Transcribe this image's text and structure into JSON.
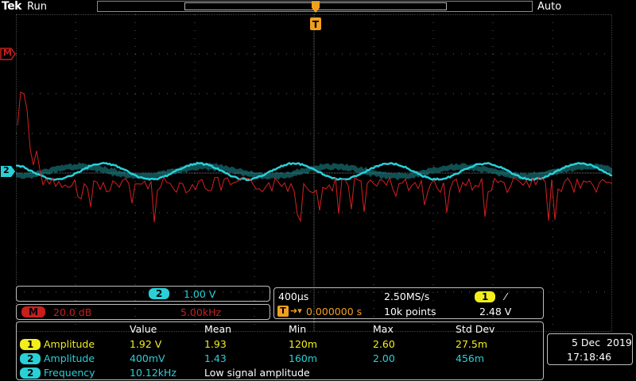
{
  "header": {
    "logo": "Tek",
    "status": "Run",
    "trigger_mode": "Auto",
    "trigger_marker": "T"
  },
  "markers": {
    "math": "M",
    "ch2": "2"
  },
  "ch2_scale": {
    "badge": "2",
    "value": "1.00 V"
  },
  "math_scale": {
    "badge": "M",
    "value": "20.0 dB",
    "freq": "5.00kHz"
  },
  "timebase": {
    "time_div": "400µs",
    "sample_rate": "2.50MS/s",
    "trigger_badge": "1",
    "trigger_slope": "⁄",
    "trigger_icon": "T",
    "position": "0.000000 s",
    "record_length": "10k points",
    "trigger_level": "2.48 V"
  },
  "measurements": {
    "headers": [
      "Value",
      "Mean",
      "Min",
      "Max",
      "Std Dev"
    ],
    "rows": [
      {
        "ch": "1",
        "name": "Amplitude",
        "value": "1.92 V",
        "mean": "1.93",
        "min": "120m",
        "max": "2.60",
        "std": "27.5m"
      },
      {
        "ch": "2",
        "name": "Amplitude",
        "value": "400mV",
        "mean": "1.43",
        "min": "160m",
        "max": "2.00",
        "std": "456m"
      },
      {
        "ch": "2",
        "name": "Frequency",
        "value": "10.12kHz",
        "note": "Low signal amplitude"
      }
    ]
  },
  "datetime": {
    "date": "5 Dec  2019",
    "time": "17:18:46"
  },
  "colors": {
    "ch1": "#f2ef1d",
    "ch2": "#29d0d8",
    "math": "#c81e1e",
    "grid": "#5a5a5a"
  }
}
